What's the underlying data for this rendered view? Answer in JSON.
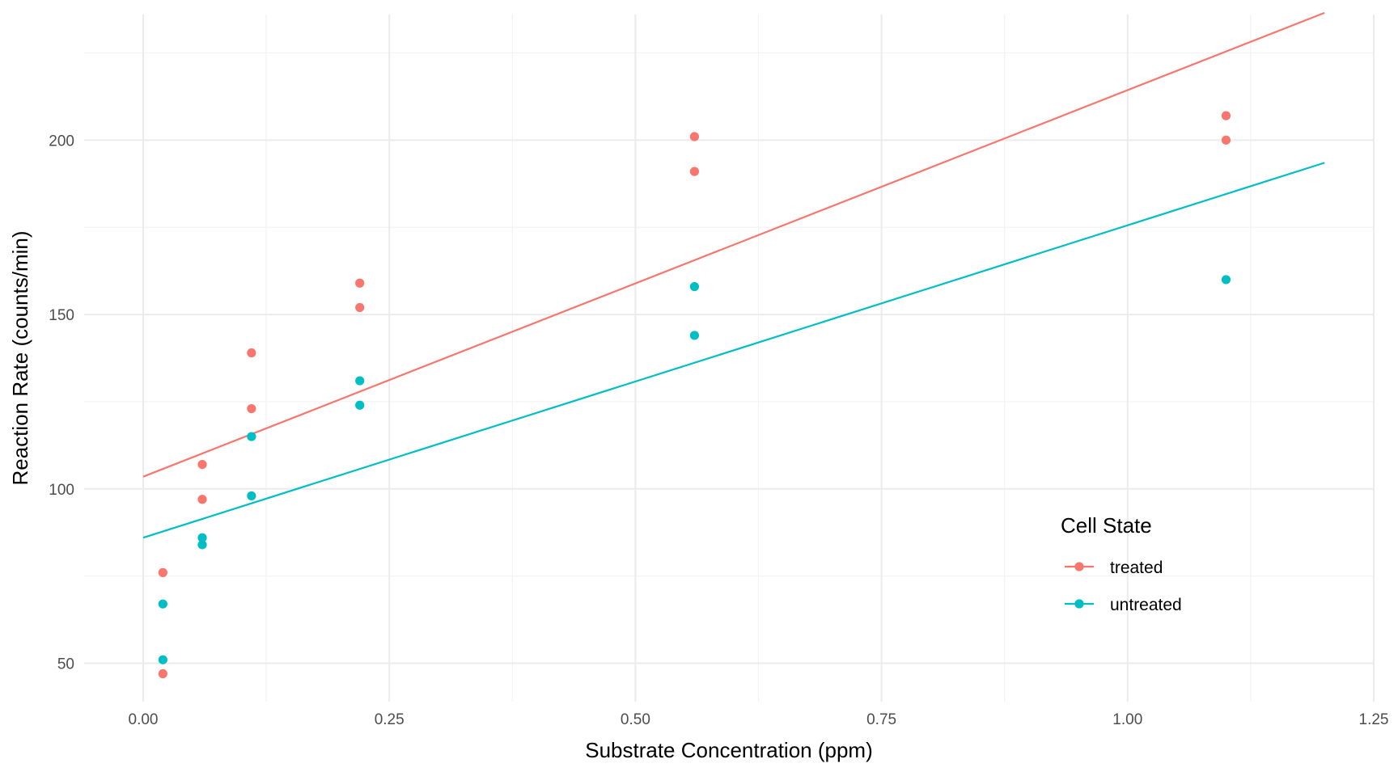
{
  "chart_data": {
    "type": "scatter",
    "xlabel": "Substrate Concentration (ppm)",
    "ylabel": "Reaction Rate (counts/min)",
    "xlim": [
      -0.06,
      1.25
    ],
    "ylim": [
      39,
      236
    ],
    "x_ticks": [
      0.0,
      0.25,
      0.5,
      0.75,
      1.0,
      1.25
    ],
    "x_tick_labels": [
      "0.00",
      "0.25",
      "0.50",
      "0.75",
      "1.00",
      "1.25"
    ],
    "y_ticks": [
      50,
      100,
      150,
      200
    ],
    "y_tick_labels": [
      "50",
      "100",
      "150",
      "200"
    ],
    "grid": true,
    "legend_position": "right, inside bottom-right",
    "legend_title": "Cell State",
    "series": [
      {
        "name": "treated",
        "color": "#F8766D",
        "points": [
          [
            0.02,
            76
          ],
          [
            0.02,
            47
          ],
          [
            0.06,
            97
          ],
          [
            0.06,
            107
          ],
          [
            0.11,
            123
          ],
          [
            0.11,
            139
          ],
          [
            0.22,
            159
          ],
          [
            0.22,
            152
          ],
          [
            0.56,
            191
          ],
          [
            0.56,
            201
          ],
          [
            1.1,
            207
          ],
          [
            1.1,
            200
          ]
        ],
        "fit_line": {
          "x": [
            0.0,
            1.2
          ],
          "y": [
            103.5,
            236.5
          ]
        }
      },
      {
        "name": "untreated",
        "color": "#00BFC4",
        "points": [
          [
            0.02,
            67
          ],
          [
            0.02,
            51
          ],
          [
            0.06,
            84
          ],
          [
            0.06,
            86
          ],
          [
            0.11,
            98
          ],
          [
            0.11,
            115
          ],
          [
            0.22,
            131
          ],
          [
            0.22,
            124
          ],
          [
            0.56,
            144
          ],
          [
            0.56,
            158
          ],
          [
            1.1,
            160
          ]
        ],
        "fit_line": {
          "x": [
            0.0,
            1.2
          ],
          "y": [
            86.0,
            193.5
          ]
        }
      }
    ]
  }
}
